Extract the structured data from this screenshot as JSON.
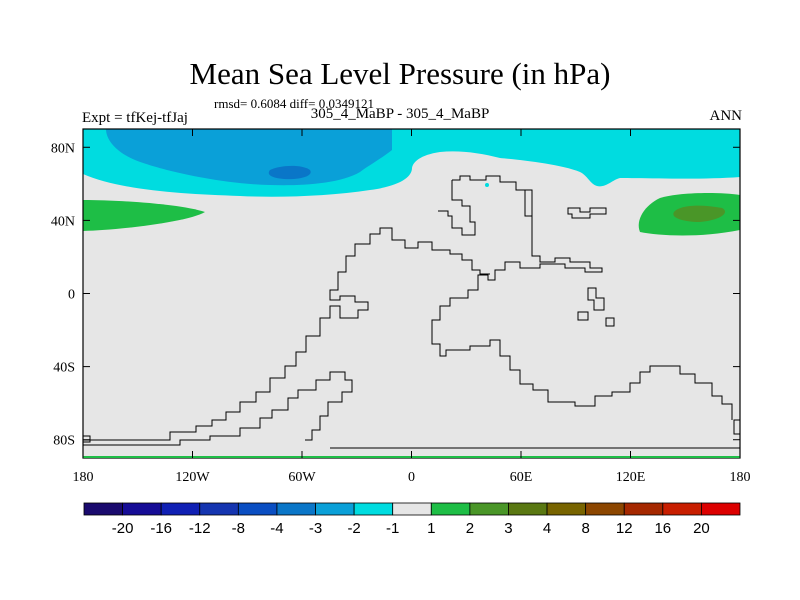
{
  "title": "Mean Sea Level Pressure (in hPa)",
  "stats": "rmsd= 0.6084  diff= 0.0349121",
  "left_label": "Expt = tfKej-tfJaj",
  "center_label": "305_4_MaBP - 305_4_MaBP",
  "right_label": "ANN",
  "chart_data": {
    "type": "heatmap",
    "title": "Mean Sea Level Pressure (in hPa)",
    "xlabel": "",
    "ylabel": "",
    "xlim": [
      -180,
      180
    ],
    "ylim": [
      -90,
      90
    ],
    "x_ticks": [
      {
        "value": -180,
        "label": "180"
      },
      {
        "value": -120,
        "label": "120W"
      },
      {
        "value": -60,
        "label": "60W"
      },
      {
        "value": 0,
        "label": "0"
      },
      {
        "value": 60,
        "label": "60E"
      },
      {
        "value": 120,
        "label": "120E"
      },
      {
        "value": 180,
        "label": "180"
      }
    ],
    "y_ticks": [
      {
        "value": 80,
        "label": "80N"
      },
      {
        "value": 40,
        "label": "40N"
      },
      {
        "value": 0,
        "label": "0"
      },
      {
        "value": -40,
        "label": "40S"
      },
      {
        "value": -80,
        "label": "80S"
      }
    ],
    "background_level": "-1 to 1",
    "colorbar": {
      "labels": [
        "-20",
        "-16",
        "-12",
        "-8",
        "-4",
        "-3",
        "-2",
        "-1",
        "1",
        "2",
        "3",
        "4",
        "8",
        "12",
        "16",
        "20"
      ],
      "colors": [
        "#1a0a6e",
        "#160c96",
        "#1020b4",
        "#1535b0",
        "#0a4ec2",
        "#0a76c8",
        "#0aa0d8",
        "#00dce0",
        "#e6e6e6",
        "#1ebe46",
        "#4a9628",
        "#5a7812",
        "#786400",
        "#8c4600",
        "#a52800",
        "#c81e00",
        "#dc0000"
      ]
    },
    "regions": [
      {
        "name": "north-polar-negative",
        "level": "-2 to -1",
        "lon": [
          -180,
          180
        ],
        "lat": [
          57,
          90
        ],
        "color": "#00dce0"
      },
      {
        "name": "north-pacific-atlantic-negative",
        "level": "-3 to -2",
        "lon": [
          -165,
          -35
        ],
        "lat": [
          67,
          90
        ],
        "color": "#0aa0d8"
      },
      {
        "name": "arctic-low-core",
        "level": "-4 to -3",
        "lon": [
          -80,
          -55
        ],
        "lat": [
          66,
          73
        ],
        "color": "#0a76c8"
      },
      {
        "name": "west-pacific-high",
        "level": "1 to 2",
        "lon": [
          -180,
          -150
        ],
        "lat": [
          35,
          52
        ],
        "color": "#1ebe46"
      },
      {
        "name": "east-pacific-high",
        "level": "1 to 2",
        "lon": [
          128,
          180
        ],
        "lat": [
          36,
          55
        ],
        "color": "#1ebe46"
      },
      {
        "name": "east-pacific-high-core",
        "level": "2 to 3",
        "lon": [
          150,
          172
        ],
        "lat": [
          41,
          48
        ],
        "color": "#4a9628"
      }
    ]
  }
}
